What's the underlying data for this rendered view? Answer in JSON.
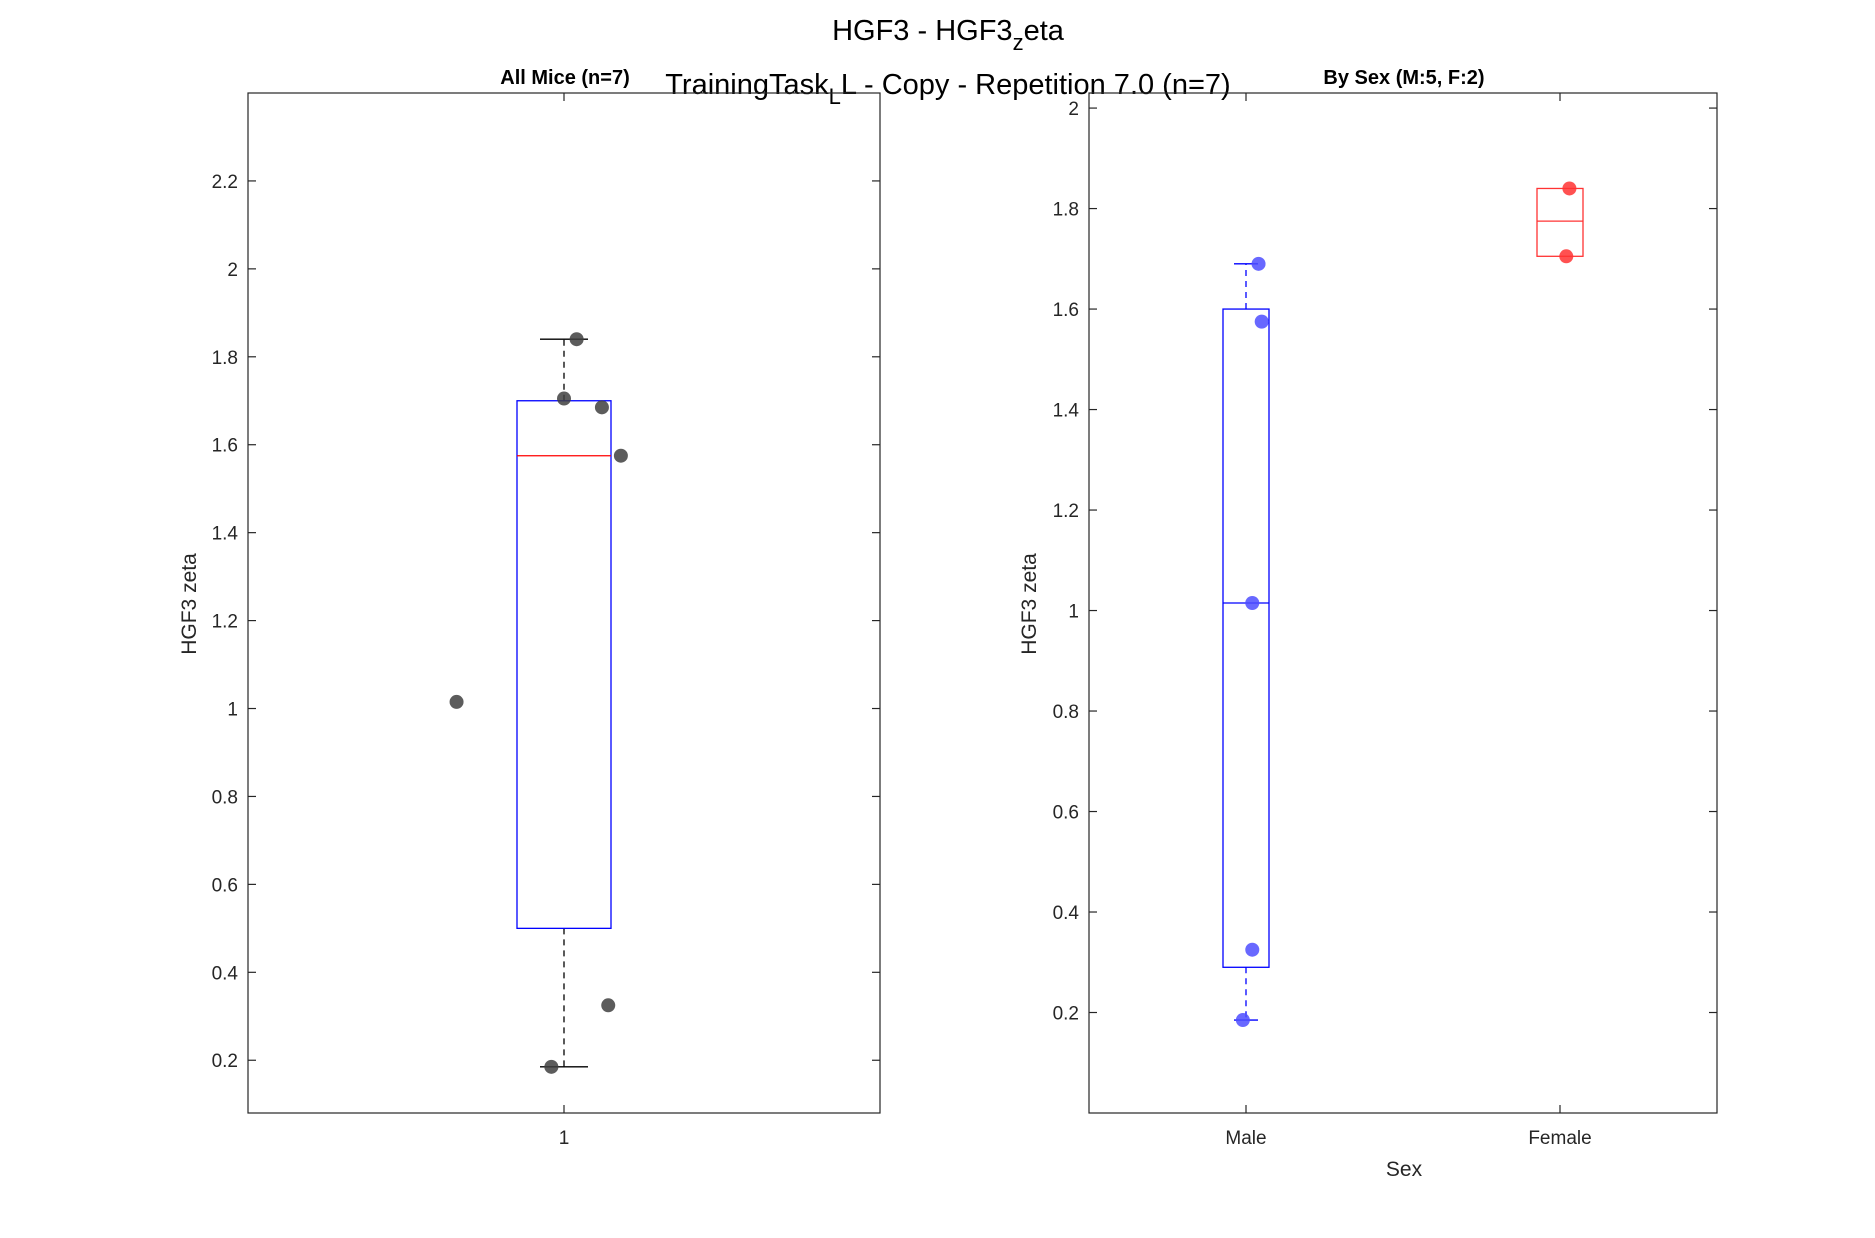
{
  "figure": {
    "title_main": "HGF3 - HGF3",
    "title_main_sub": "z",
    "title_main_tail": "eta",
    "title_second": "TrainingTask",
    "title_second_sub": "L",
    "title_second_tail": "L - Copy - Repetition 7.0 (n=7)"
  },
  "colors": {
    "box_blue": "#0000ff",
    "median_red": "#ff0000",
    "whisker": "#000000",
    "all_points": "#404040",
    "male": "#4d4dff",
    "female": "#ff3333",
    "female_box": "#ff3333"
  },
  "chart_data": [
    {
      "type": "box",
      "title": "All Mice (n=7)",
      "ylabel": "HGF3 zeta",
      "xlabel": "",
      "categories": [
        "1"
      ],
      "ylim": [
        0.08,
        2.4
      ],
      "yticks": [
        0.2,
        0.4,
        0.6,
        0.8,
        1,
        1.2,
        1.4,
        1.6,
        1.8,
        2,
        2.2
      ],
      "grid": false,
      "boxes": [
        {
          "category": "1",
          "q1": 0.5,
          "median": 1.575,
          "q3": 1.7,
          "whisker_low": 0.185,
          "whisker_high": 1.84,
          "box_color": "#0000ff",
          "median_color": "#ff0000",
          "whisker_color": "#000000"
        }
      ],
      "points": [
        {
          "x": 1.02,
          "y": 1.84
        },
        {
          "x": 1.0,
          "y": 1.705
        },
        {
          "x": 1.06,
          "y": 1.685
        },
        {
          "x": 1.09,
          "y": 1.575
        },
        {
          "x": 0.83,
          "y": 1.015
        },
        {
          "x": 1.07,
          "y": 0.325
        },
        {
          "x": 0.98,
          "y": 0.185
        }
      ]
    },
    {
      "type": "box",
      "title": "By Sex (M:5, F:2)",
      "ylabel": "HGF3 zeta",
      "xlabel": "Sex",
      "categories": [
        "Male",
        "Female"
      ],
      "ylim": [
        0.0,
        2.03
      ],
      "yticks": [
        0.2,
        0.4,
        0.6,
        0.8,
        1,
        1.2,
        1.4,
        1.6,
        1.8,
        2
      ],
      "grid": false,
      "boxes": [
        {
          "category": "Male",
          "q1": 0.29,
          "median": 1.015,
          "q3": 1.6,
          "whisker_low": 0.185,
          "whisker_high": 1.69,
          "box_color": "#0000ff",
          "median_color": "#0000ff",
          "whisker_color": "#0000ff"
        },
        {
          "category": "Female",
          "q1": 1.705,
          "median": 1.775,
          "q3": 1.84,
          "whisker_low": 1.705,
          "whisker_high": 1.84,
          "box_color": "#ff3333",
          "median_color": "#ff3333",
          "whisker_color": "#ff3333"
        }
      ],
      "points": [
        {
          "x": 1.04,
          "y": 1.69,
          "series": "Male"
        },
        {
          "x": 1.05,
          "y": 1.575,
          "series": "Male"
        },
        {
          "x": 1.02,
          "y": 1.015,
          "series": "Male"
        },
        {
          "x": 1.02,
          "y": 0.325,
          "series": "Male"
        },
        {
          "x": 0.99,
          "y": 0.185,
          "series": "Male"
        },
        {
          "x": 2.03,
          "y": 1.84,
          "series": "Female"
        },
        {
          "x": 2.02,
          "y": 1.705,
          "series": "Female"
        }
      ]
    }
  ]
}
